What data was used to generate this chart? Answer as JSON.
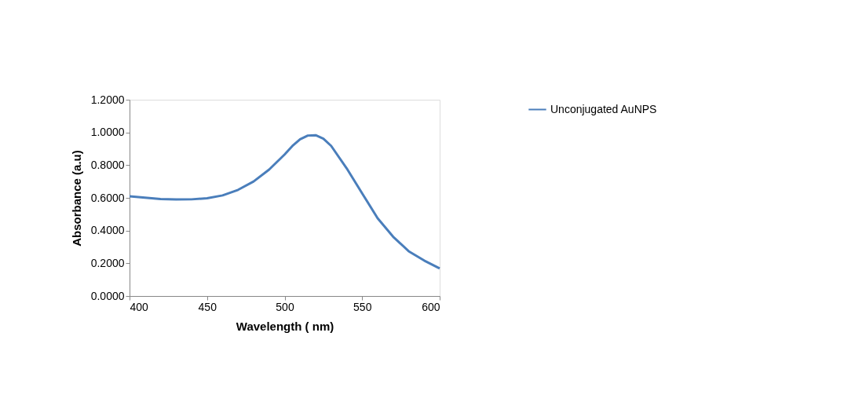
{
  "chart_data": {
    "type": "line",
    "xlabel": "Wavelength ( nm)",
    "ylabel": "Absorbance (a.u)",
    "x": [
      400,
      410,
      420,
      430,
      440,
      450,
      460,
      470,
      480,
      490,
      500,
      505,
      510,
      515,
      520,
      525,
      530,
      540,
      550,
      560,
      570,
      580,
      590,
      600
    ],
    "series": [
      {
        "name": "Unconjugated AuNPS",
        "color": "#4a7ebb",
        "values": [
          0.61,
          0.601,
          0.593,
          0.59,
          0.591,
          0.598,
          0.615,
          0.649,
          0.7,
          0.773,
          0.865,
          0.917,
          0.958,
          0.981,
          0.983,
          0.962,
          0.918,
          0.781,
          0.628,
          0.475,
          0.362,
          0.274,
          0.217,
          0.169
        ]
      }
    ],
    "xlim": [
      400,
      600
    ],
    "xticks": [
      400,
      450,
      500,
      550,
      600
    ],
    "ylim": [
      0,
      1.2
    ],
    "yticks": [
      {
        "value": 0,
        "label": "0.0000"
      },
      {
        "value": 0.2,
        "label": "0.2000"
      },
      {
        "value": 0.4,
        "label": "0.4000"
      },
      {
        "value": 0.6,
        "label": "0.6000"
      },
      {
        "value": 0.8,
        "label": "0.8000"
      },
      {
        "value": 1.0,
        "label": "1.0000"
      },
      {
        "value": 1.2,
        "label": "1.2000"
      }
    ],
    "grid": false,
    "legend": "right",
    "marker": "none",
    "line_style": "solid"
  }
}
